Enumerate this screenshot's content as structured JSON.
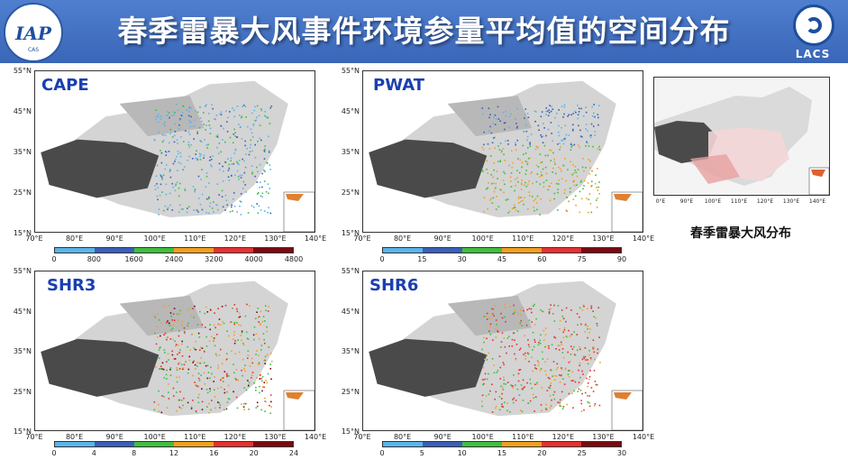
{
  "header": {
    "title": "春季雷暴大风事件环境参量平均值的空间分布",
    "left_logo_text": "IAP",
    "left_logo_ring": "CAS",
    "right_logo_text": "LACS",
    "background_color": "#3f6fc2"
  },
  "lat_ticks": [
    "55°N",
    "45°N",
    "35°N",
    "25°N",
    "15°N"
  ],
  "lon_ticks": [
    "70°E",
    "80°E",
    "90°E",
    "100°E",
    "110°E",
    "120°E",
    "130°E",
    "140°E"
  ],
  "colorbar_colors": [
    "#5bb4ea",
    "#3a5fb8",
    "#3fbf3f",
    "#f0a020",
    "#e83030",
    "#7a0a10"
  ],
  "panels": [
    {
      "label": "CAPE",
      "cbar_ticks": [
        "0",
        "800",
        "1600",
        "2400",
        "3200",
        "4000",
        "4800"
      ]
    },
    {
      "label": "PWAT",
      "cbar_ticks": [
        "0",
        "15",
        "30",
        "45",
        "60",
        "75",
        "90"
      ]
    },
    {
      "label": "SHR3",
      "cbar_ticks": [
        "0",
        "4",
        "8",
        "12",
        "16",
        "20",
        "24"
      ]
    },
    {
      "label": "SHR6",
      "cbar_ticks": [
        "0",
        "5",
        "10",
        "15",
        "20",
        "25",
        "30"
      ]
    }
  ],
  "side_panel": {
    "caption": "春季雷暴大风分布",
    "lon_ticks": [
      "0°E",
      "90°E",
      "100°E",
      "110°E",
      "120°E",
      "130°E",
      "140°E"
    ]
  }
}
